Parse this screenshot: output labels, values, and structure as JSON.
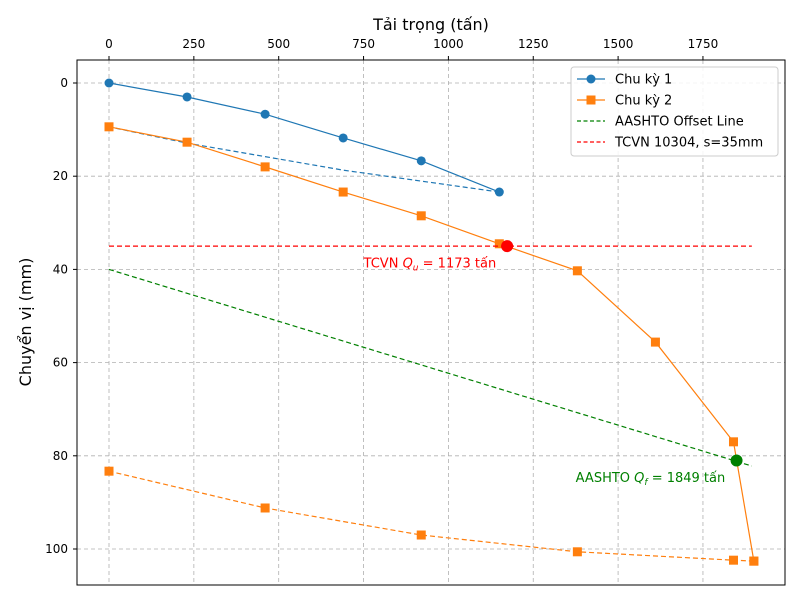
{
  "chart_data": {
    "type": "line",
    "xlabel": "Tải trọng (tấn)",
    "ylabel": "Chuyển vị (mm)",
    "x_axis_position": "top",
    "y_inverted": true,
    "xlim": [
      -94,
      1988
    ],
    "ylim": [
      106.8,
      -4.9
    ],
    "xticks": [
      0,
      250,
      500,
      750,
      1000,
      1250,
      1500,
      1750
    ],
    "yticks": [
      0,
      20,
      40,
      60,
      80,
      100
    ],
    "grid": true,
    "legend_position": "top-right",
    "series": [
      {
        "name": "Chu kỳ 1",
        "color": "#1f77b4",
        "marker": "circle",
        "style": "solid",
        "x": [
          0,
          230,
          460,
          690,
          920,
          1150
        ],
        "y": [
          0,
          3.0,
          6.7,
          11.8,
          16.7,
          23.4
        ]
      },
      {
        "color": "#1f77b4",
        "marker": "none",
        "style": "dashed",
        "x": [
          1150,
          690,
          230,
          0
        ],
        "y": [
          23.4,
          18.7,
          12.9,
          9.4
        ]
      },
      {
        "name": "Chu kỳ 2",
        "color": "#ff7f0e",
        "marker": "square",
        "style": "solid",
        "x": [
          0,
          230,
          460,
          690,
          920,
          1150,
          1380,
          1610,
          1840,
          1900
        ],
        "y": [
          9.4,
          12.7,
          18.0,
          23.4,
          28.5,
          34.5,
          40.3,
          55.6,
          77.0,
          102.6
        ]
      },
      {
        "color": "#ff7f0e",
        "marker": "square",
        "style": "dashed",
        "x": [
          1900,
          1840,
          1380,
          920,
          460,
          0
        ],
        "y": [
          102.6,
          102.4,
          100.6,
          97.0,
          91.2,
          83.3
        ]
      },
      {
        "name": "AASHTO Offset Line",
        "color": "#008000",
        "marker": "none",
        "style": "dashed",
        "x": [
          0,
          1894
        ],
        "y": [
          40,
          82.2
        ]
      },
      {
        "name": "TCVN 10304, s=35mm",
        "color": "#ff0000",
        "marker": "none",
        "style": "dashed",
        "x": [
          0,
          1894
        ],
        "y": [
          35,
          35
        ]
      }
    ],
    "points": [
      {
        "x": 1173,
        "y": 35,
        "color": "#ff0000"
      },
      {
        "x": 1849,
        "y": 81,
        "color": "#008000"
      }
    ],
    "annotations": [
      {
        "prefix": "TCVN ",
        "sym": "Q",
        "sub": "u",
        "suffix": " = 1173 tấn",
        "color": "#ff0000",
        "x": 750,
        "y": 38.5
      },
      {
        "prefix": "AASHTO ",
        "sym": "Q",
        "sub": "f",
        "suffix": " = 1849 tấn",
        "color": "#008000",
        "x": 1375,
        "y": 84.5
      }
    ]
  }
}
